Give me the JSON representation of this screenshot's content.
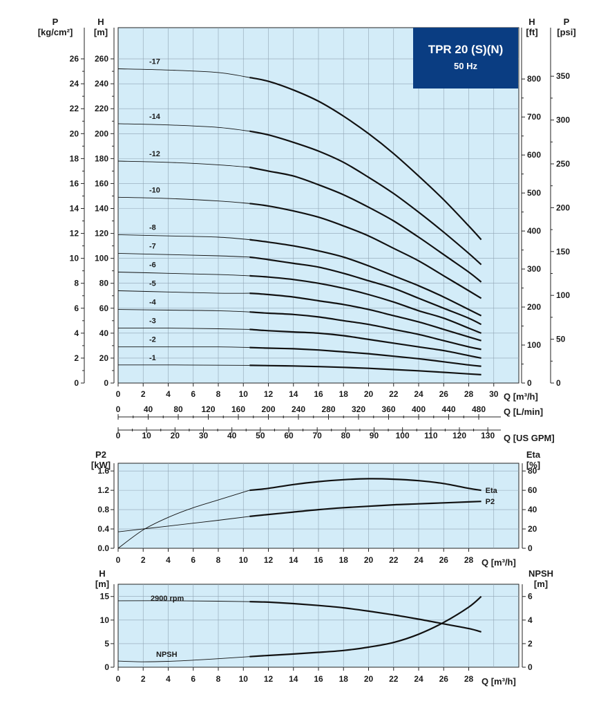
{
  "banner": {
    "title": "TPR 20 (S)(N)",
    "frequency": "50 Hz"
  },
  "chart_data": [
    {
      "type": "line",
      "name": "head-curves",
      "x_unit": "Q [m³/h]",
      "xlim": [
        0,
        32
      ],
      "ylim": [
        0,
        285
      ],
      "left_axes": [
        {
          "label1": "P",
          "label2": "[kg/cm²]",
          "ticks": [
            0,
            2,
            4,
            6,
            8,
            10,
            12,
            14,
            16,
            18,
            20,
            22,
            24,
            26
          ],
          "to_h": 10
        },
        {
          "label1": "H",
          "label2": "[m]",
          "ticks": [
            0,
            20,
            40,
            60,
            80,
            100,
            120,
            140,
            160,
            180,
            200,
            220,
            240,
            260
          ],
          "to_h": 1
        }
      ],
      "right_axes": [
        {
          "label1": "H",
          "label2": "[ft]",
          "ticks": [
            0,
            100,
            200,
            300,
            400,
            500,
            600,
            700,
            800
          ],
          "to_h": 0.3048
        },
        {
          "label1": "P",
          "label2": "[psi]",
          "ticks": [
            0,
            50,
            100,
            150,
            200,
            250,
            300,
            350
          ],
          "to_h": 0.70307
        }
      ],
      "x_scales": [
        {
          "label": "Q [m³/h]",
          "ticks": [
            0,
            2,
            4,
            6,
            8,
            10,
            12,
            14,
            16,
            18,
            20,
            22,
            24,
            26,
            28,
            30
          ],
          "to_q": 1
        },
        {
          "label": "Q [L/min]",
          "ticks": [
            0,
            40,
            80,
            120,
            160,
            200,
            240,
            280,
            320,
            360,
            400,
            440,
            480
          ],
          "to_q": 0.06
        },
        {
          "label": "Q [US GPM]",
          "ticks": [
            0,
            10,
            20,
            30,
            40,
            50,
            60,
            70,
            80,
            90,
            100,
            110,
            120,
            130
          ],
          "to_q": 0.22712
        }
      ],
      "series": [
        {
          "name": "-17",
          "x": [
            0,
            4,
            8,
            10.5,
            12,
            14,
            16,
            18,
            20,
            22,
            24,
            26,
            28,
            29
          ],
          "y": [
            252,
            251,
            249,
            245,
            242,
            235,
            226,
            214,
            200,
            184,
            166,
            147,
            126,
            115
          ]
        },
        {
          "name": "-14",
          "x": [
            0,
            4,
            8,
            10.5,
            12,
            14,
            16,
            18,
            20,
            22,
            24,
            26,
            28,
            29
          ],
          "y": [
            208,
            207,
            205,
            202,
            199,
            193,
            186,
            177,
            165,
            152,
            137,
            121,
            104,
            95
          ]
        },
        {
          "name": "-12",
          "x": [
            0,
            4,
            8,
            10.5,
            12,
            14,
            16,
            18,
            20,
            22,
            24,
            26,
            28,
            29
          ],
          "y": [
            178,
            177,
            175,
            173,
            170,
            166,
            159,
            151,
            141,
            130,
            117,
            103,
            89,
            81
          ]
        },
        {
          "name": "-10",
          "x": [
            0,
            4,
            8,
            10.5,
            12,
            14,
            16,
            18,
            20,
            22,
            24,
            26,
            28,
            29
          ],
          "y": [
            149,
            148,
            146,
            144,
            142,
            138,
            133,
            126,
            118,
            108,
            98,
            86,
            74,
            68
          ]
        },
        {
          "name": "-8",
          "x": [
            0,
            4,
            8,
            10.5,
            12,
            14,
            16,
            18,
            20,
            22,
            24,
            26,
            28,
            29
          ],
          "y": [
            119,
            118,
            117,
            115,
            113,
            110,
            106,
            101,
            94,
            86,
            78,
            69,
            59,
            54
          ]
        },
        {
          "name": "-7",
          "x": [
            0,
            4,
            8,
            10.5,
            12,
            14,
            16,
            18,
            20,
            22,
            24,
            26,
            28,
            29
          ],
          "y": [
            104,
            103,
            102,
            101,
            99,
            96,
            93,
            88,
            82,
            76,
            68,
            60,
            52,
            47
          ]
        },
        {
          "name": "-6",
          "x": [
            0,
            4,
            8,
            10.5,
            12,
            14,
            16,
            18,
            20,
            22,
            24,
            26,
            28,
            29
          ],
          "y": [
            89,
            88,
            87,
            86,
            85,
            83,
            80,
            76,
            71,
            65,
            58,
            52,
            44,
            40
          ]
        },
        {
          "name": "-5",
          "x": [
            0,
            4,
            8,
            10.5,
            12,
            14,
            16,
            18,
            20,
            22,
            24,
            26,
            28,
            29
          ],
          "y": [
            74,
            73,
            72,
            72,
            71,
            69,
            66,
            63,
            59,
            54,
            49,
            43,
            37,
            34
          ]
        },
        {
          "name": "-4",
          "x": [
            0,
            4,
            8,
            10.5,
            12,
            14,
            16,
            18,
            20,
            22,
            24,
            26,
            28,
            29
          ],
          "y": [
            59,
            58.5,
            58,
            57,
            56,
            55,
            53,
            50,
            47,
            43,
            39,
            34,
            29,
            27
          ]
        },
        {
          "name": "-3",
          "x": [
            0,
            4,
            8,
            10.5,
            12,
            14,
            16,
            18,
            20,
            22,
            24,
            26,
            28,
            29
          ],
          "y": [
            44,
            44,
            43.5,
            43,
            42,
            41,
            40,
            38,
            35,
            32,
            29,
            26,
            22,
            20
          ]
        },
        {
          "name": "-2",
          "x": [
            0,
            4,
            8,
            10.5,
            12,
            14,
            16,
            18,
            20,
            22,
            24,
            26,
            28,
            29
          ],
          "y": [
            29,
            29,
            29,
            28.5,
            28,
            27.5,
            26.5,
            25,
            23.5,
            21.5,
            19.5,
            17,
            14.5,
            13.5
          ]
        },
        {
          "name": "-1",
          "x": [
            0,
            4,
            8,
            10.5,
            12,
            14,
            16,
            18,
            20,
            22,
            24,
            26,
            28,
            29
          ],
          "y": [
            14.5,
            14.5,
            14.3,
            14.2,
            14,
            13.7,
            13.2,
            12.6,
            11.8,
            10.8,
            9.8,
            8.6,
            7.3,
            6.7
          ]
        }
      ]
    },
    {
      "type": "line",
      "name": "power-efficiency",
      "xlim": [
        0,
        32
      ],
      "x_ticks": [
        0,
        2,
        4,
        6,
        8,
        10,
        12,
        14,
        16,
        18,
        20,
        22,
        24,
        26,
        28
      ],
      "xlabel": "Q [m³/h]",
      "left_axis": {
        "label1": "P2",
        "label2": "[kW]",
        "ticks": [
          "0.0",
          "0.4",
          "0.8",
          "1.2",
          "1.6"
        ],
        "ylim": [
          0,
          1.76
        ]
      },
      "right_axis": {
        "label1": "Eta",
        "label2": "[%]",
        "ticks": [
          0,
          20,
          40,
          60,
          80
        ],
        "ylim": [
          0,
          88
        ]
      },
      "series": [
        {
          "name": "Eta",
          "axis": "right",
          "x": [
            0,
            2,
            4,
            6,
            8,
            10.5,
            12,
            14,
            16,
            18,
            20,
            22,
            24,
            26,
            28,
            29
          ],
          "y": [
            0,
            19,
            32,
            42,
            50,
            60,
            62,
            66,
            69,
            71,
            72,
            71.5,
            70,
            67,
            62,
            60
          ]
        },
        {
          "name": "P2",
          "axis": "left",
          "x": [
            0,
            2,
            4,
            6,
            8,
            10.5,
            12,
            14,
            16,
            18,
            20,
            22,
            24,
            26,
            28,
            29
          ],
          "y": [
            0.34,
            0.4,
            0.46,
            0.52,
            0.58,
            0.66,
            0.7,
            0.75,
            0.8,
            0.84,
            0.87,
            0.9,
            0.92,
            0.94,
            0.96,
            0.97
          ]
        }
      ]
    },
    {
      "type": "line",
      "name": "head-npsh",
      "xlim": [
        0,
        32
      ],
      "x_ticks": [
        0,
        2,
        4,
        6,
        8,
        10,
        12,
        14,
        16,
        18,
        20,
        22,
        24,
        26,
        28
      ],
      "xlabel": "Q [m³/h]",
      "left_axis": {
        "label1": "H",
        "label2": "[m]",
        "ticks": [
          0,
          5,
          10,
          15
        ],
        "ylim": [
          0,
          17.6
        ]
      },
      "right_axis": {
        "label1": "NPSH",
        "label2": "[m]",
        "ticks": [
          0,
          2,
          4,
          6
        ],
        "ylim": [
          0,
          7.04
        ]
      },
      "series": [
        {
          "name": "2900 rpm",
          "axis": "left",
          "x": [
            0,
            4,
            8,
            10.5,
            12,
            14,
            16,
            18,
            20,
            22,
            24,
            26,
            28,
            29
          ],
          "y": [
            14.1,
            14.1,
            14,
            13.9,
            13.8,
            13.5,
            13.1,
            12.6,
            11.9,
            11.1,
            10.2,
            9.2,
            8.2,
            7.5
          ]
        },
        {
          "name": "NPSH",
          "axis": "right",
          "x": [
            0,
            2,
            4,
            6,
            8,
            10.5,
            12,
            14,
            16,
            18,
            20,
            22,
            24,
            26,
            28,
            29
          ],
          "y": [
            0.52,
            0.46,
            0.5,
            0.6,
            0.72,
            0.9,
            1,
            1.12,
            1.26,
            1.42,
            1.7,
            2.1,
            2.8,
            3.8,
            5.1,
            6
          ]
        }
      ]
    }
  ]
}
